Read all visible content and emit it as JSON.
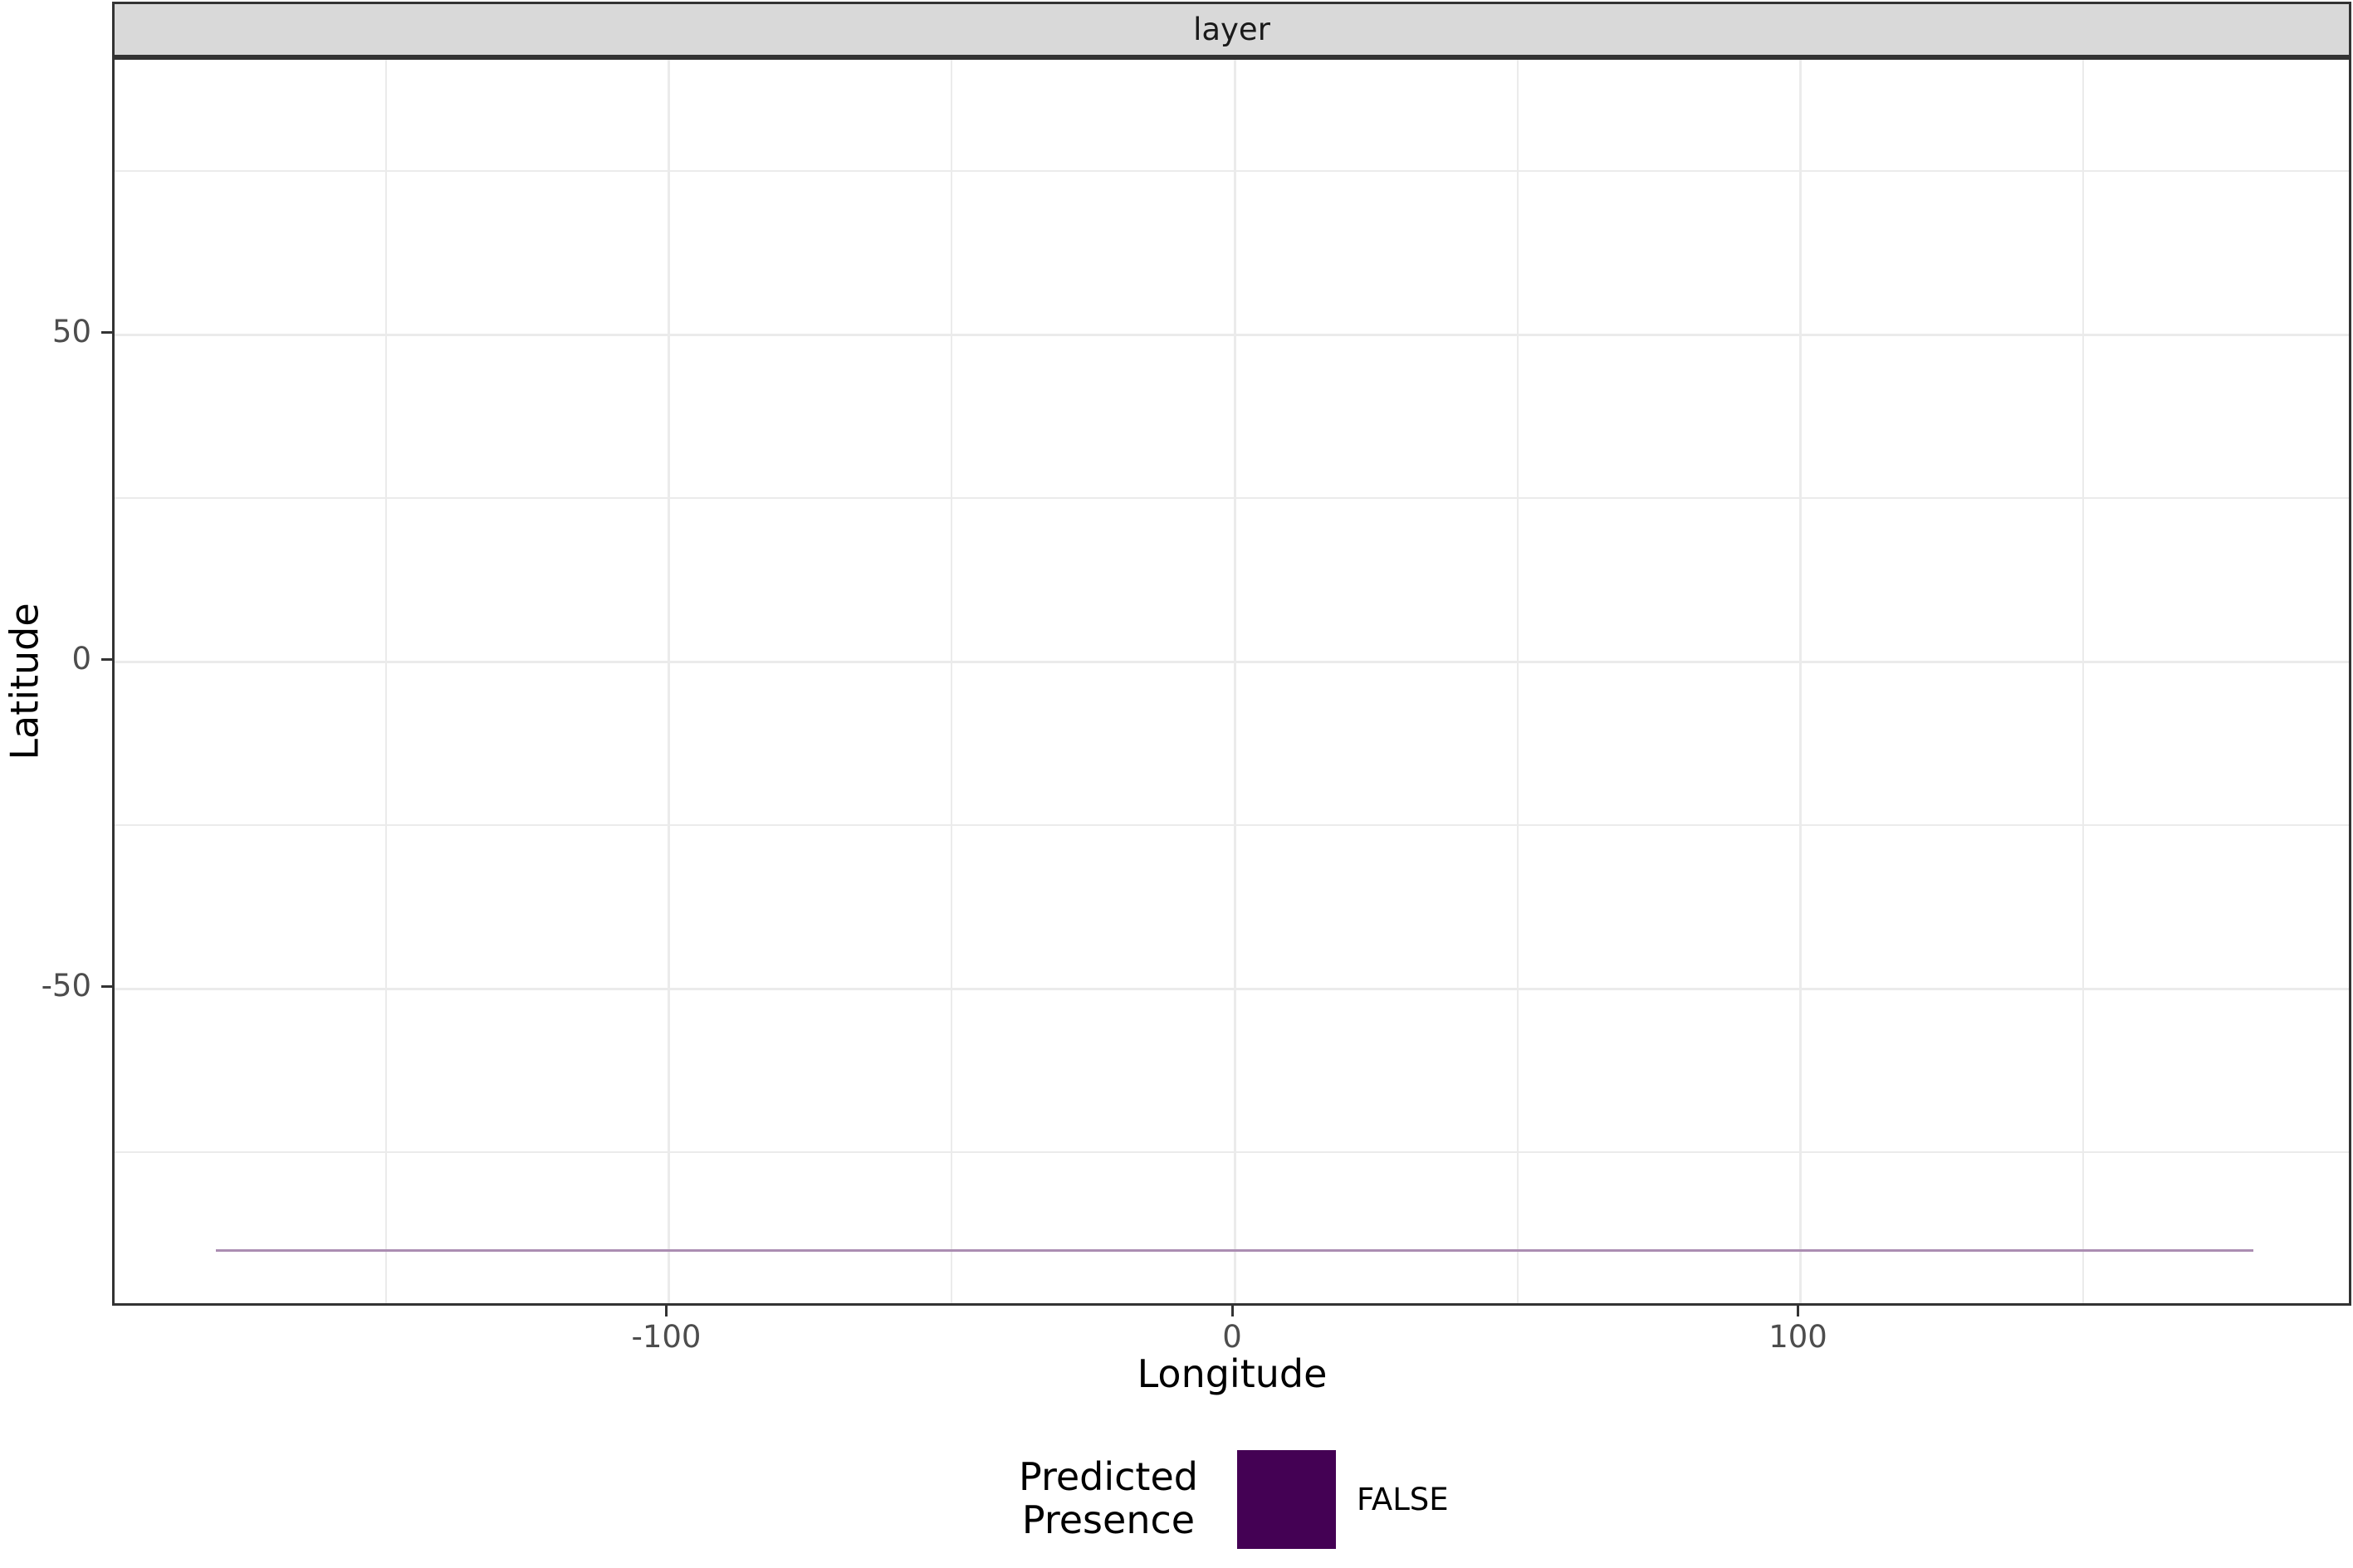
{
  "chart_data": {
    "type": "heatmap",
    "title": "",
    "facet_label": "layer",
    "xlabel": "Longitude",
    "ylabel": "Latitude",
    "x_major_ticks": [
      -100,
      0,
      100
    ],
    "x_minor_ticks": [
      -150,
      -50,
      50,
      150
    ],
    "y_major_ticks": [
      50,
      0,
      -50
    ],
    "y_minor_ticks": [
      75,
      25,
      -25,
      -75
    ],
    "x_range_shown": [
      -198,
      198
    ],
    "y_range_shown": [
      -98.9,
      92.0
    ],
    "grid": true,
    "colors": {
      "panel_background": "#FFFFFF",
      "grid_major": "#EBEBEB",
      "grid_minor": "#EBEBEB",
      "panel_border": "#333333",
      "strip_background": "#D9D9D9",
      "strip_text": "#1A1A1A",
      "tick_label": "#4D4D4D",
      "tick_mark": "#333333"
    },
    "raster": {
      "value": "FALSE",
      "lat": -90,
      "lon_start": -180,
      "lon_end": 180,
      "fill": "#440154",
      "rendered_color": "#AB8DB2",
      "note": "single visible raster row of FALSE predictions at southernmost latitude"
    },
    "legend": {
      "position": "bottom",
      "title": "Predicted Presence",
      "title_lines": [
        "Predicted",
        "Presence"
      ],
      "entries": [
        {
          "label": "FALSE",
          "color": "#440154"
        }
      ]
    }
  }
}
